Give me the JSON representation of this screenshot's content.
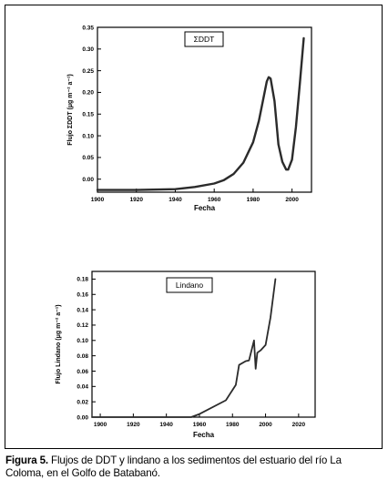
{
  "caption": {
    "label": "Figura 5.",
    "text": "Flujos de DDT y lindano a los sedimentos del estuario del río La Coloma, en el Golfo de Batabanó."
  },
  "colors": {
    "line": "#2b2b2b",
    "axis": "#000000",
    "frame": "#000000"
  },
  "chart_data": [
    {
      "type": "line",
      "title": "ΣDDT",
      "xlabel": "Fecha",
      "ylabel": "Flujo ΣDDT (μg m⁻² a⁻¹)",
      "xlim": [
        1900,
        2010
      ],
      "ylim": [
        -0.03,
        0.35
      ],
      "xticks": [
        1900,
        1920,
        1940,
        1960,
        1980,
        2000
      ],
      "yticks": [
        0.0,
        0.05,
        0.1,
        0.15,
        0.2,
        0.25,
        0.3,
        0.35
      ],
      "ytick_labels": [
        "0.00",
        "0.05",
        "0.10",
        "0.15",
        "0.20",
        "0.25",
        "0.30",
        "0.35"
      ],
      "legend": "top-center",
      "grid": false,
      "series": [
        {
          "x": [
            1900,
            1920,
            1940,
            1950,
            1960,
            1965,
            1970,
            1975,
            1980,
            1983,
            1985,
            1987,
            1988,
            1989,
            1991,
            1993,
            1995,
            1997,
            1998,
            2000,
            2002,
            2004,
            2006
          ],
          "y": [
            -0.025,
            -0.025,
            -0.023,
            -0.018,
            -0.01,
            -0.002,
            0.012,
            0.038,
            0.085,
            0.135,
            0.18,
            0.225,
            0.235,
            0.232,
            0.18,
            0.08,
            0.04,
            0.022,
            0.022,
            0.045,
            0.12,
            0.22,
            0.325
          ]
        }
      ]
    },
    {
      "type": "line",
      "title": "Lindano",
      "xlabel": "Fecha",
      "ylabel": "Flujo Lindano (μg m⁻² a⁻¹)",
      "xlim": [
        1895,
        2030
      ],
      "ylim": [
        0.0,
        0.19
      ],
      "xticks": [
        1900,
        1920,
        1940,
        1960,
        1980,
        2000,
        2020
      ],
      "yticks": [
        0.0,
        0.02,
        0.04,
        0.06,
        0.08,
        0.1,
        0.12,
        0.14,
        0.16,
        0.18
      ],
      "ytick_labels": [
        "0.00",
        "0.02",
        "0.04",
        "0.06",
        "0.08",
        "0.10",
        "0.12",
        "0.14",
        "0.16",
        "0.18"
      ],
      "legend": "top-center",
      "grid": false,
      "series": [
        {
          "x": [
            1895,
            1955,
            1960,
            1976,
            1982,
            1984,
            1988,
            1990,
            1993,
            1994,
            1995,
            1997,
            2000,
            2003,
            2006
          ],
          "y": [
            0.0,
            0.0,
            0.004,
            0.022,
            0.042,
            0.068,
            0.073,
            0.074,
            0.1,
            0.063,
            0.084,
            0.087,
            0.094,
            0.13,
            0.18
          ]
        }
      ]
    }
  ]
}
